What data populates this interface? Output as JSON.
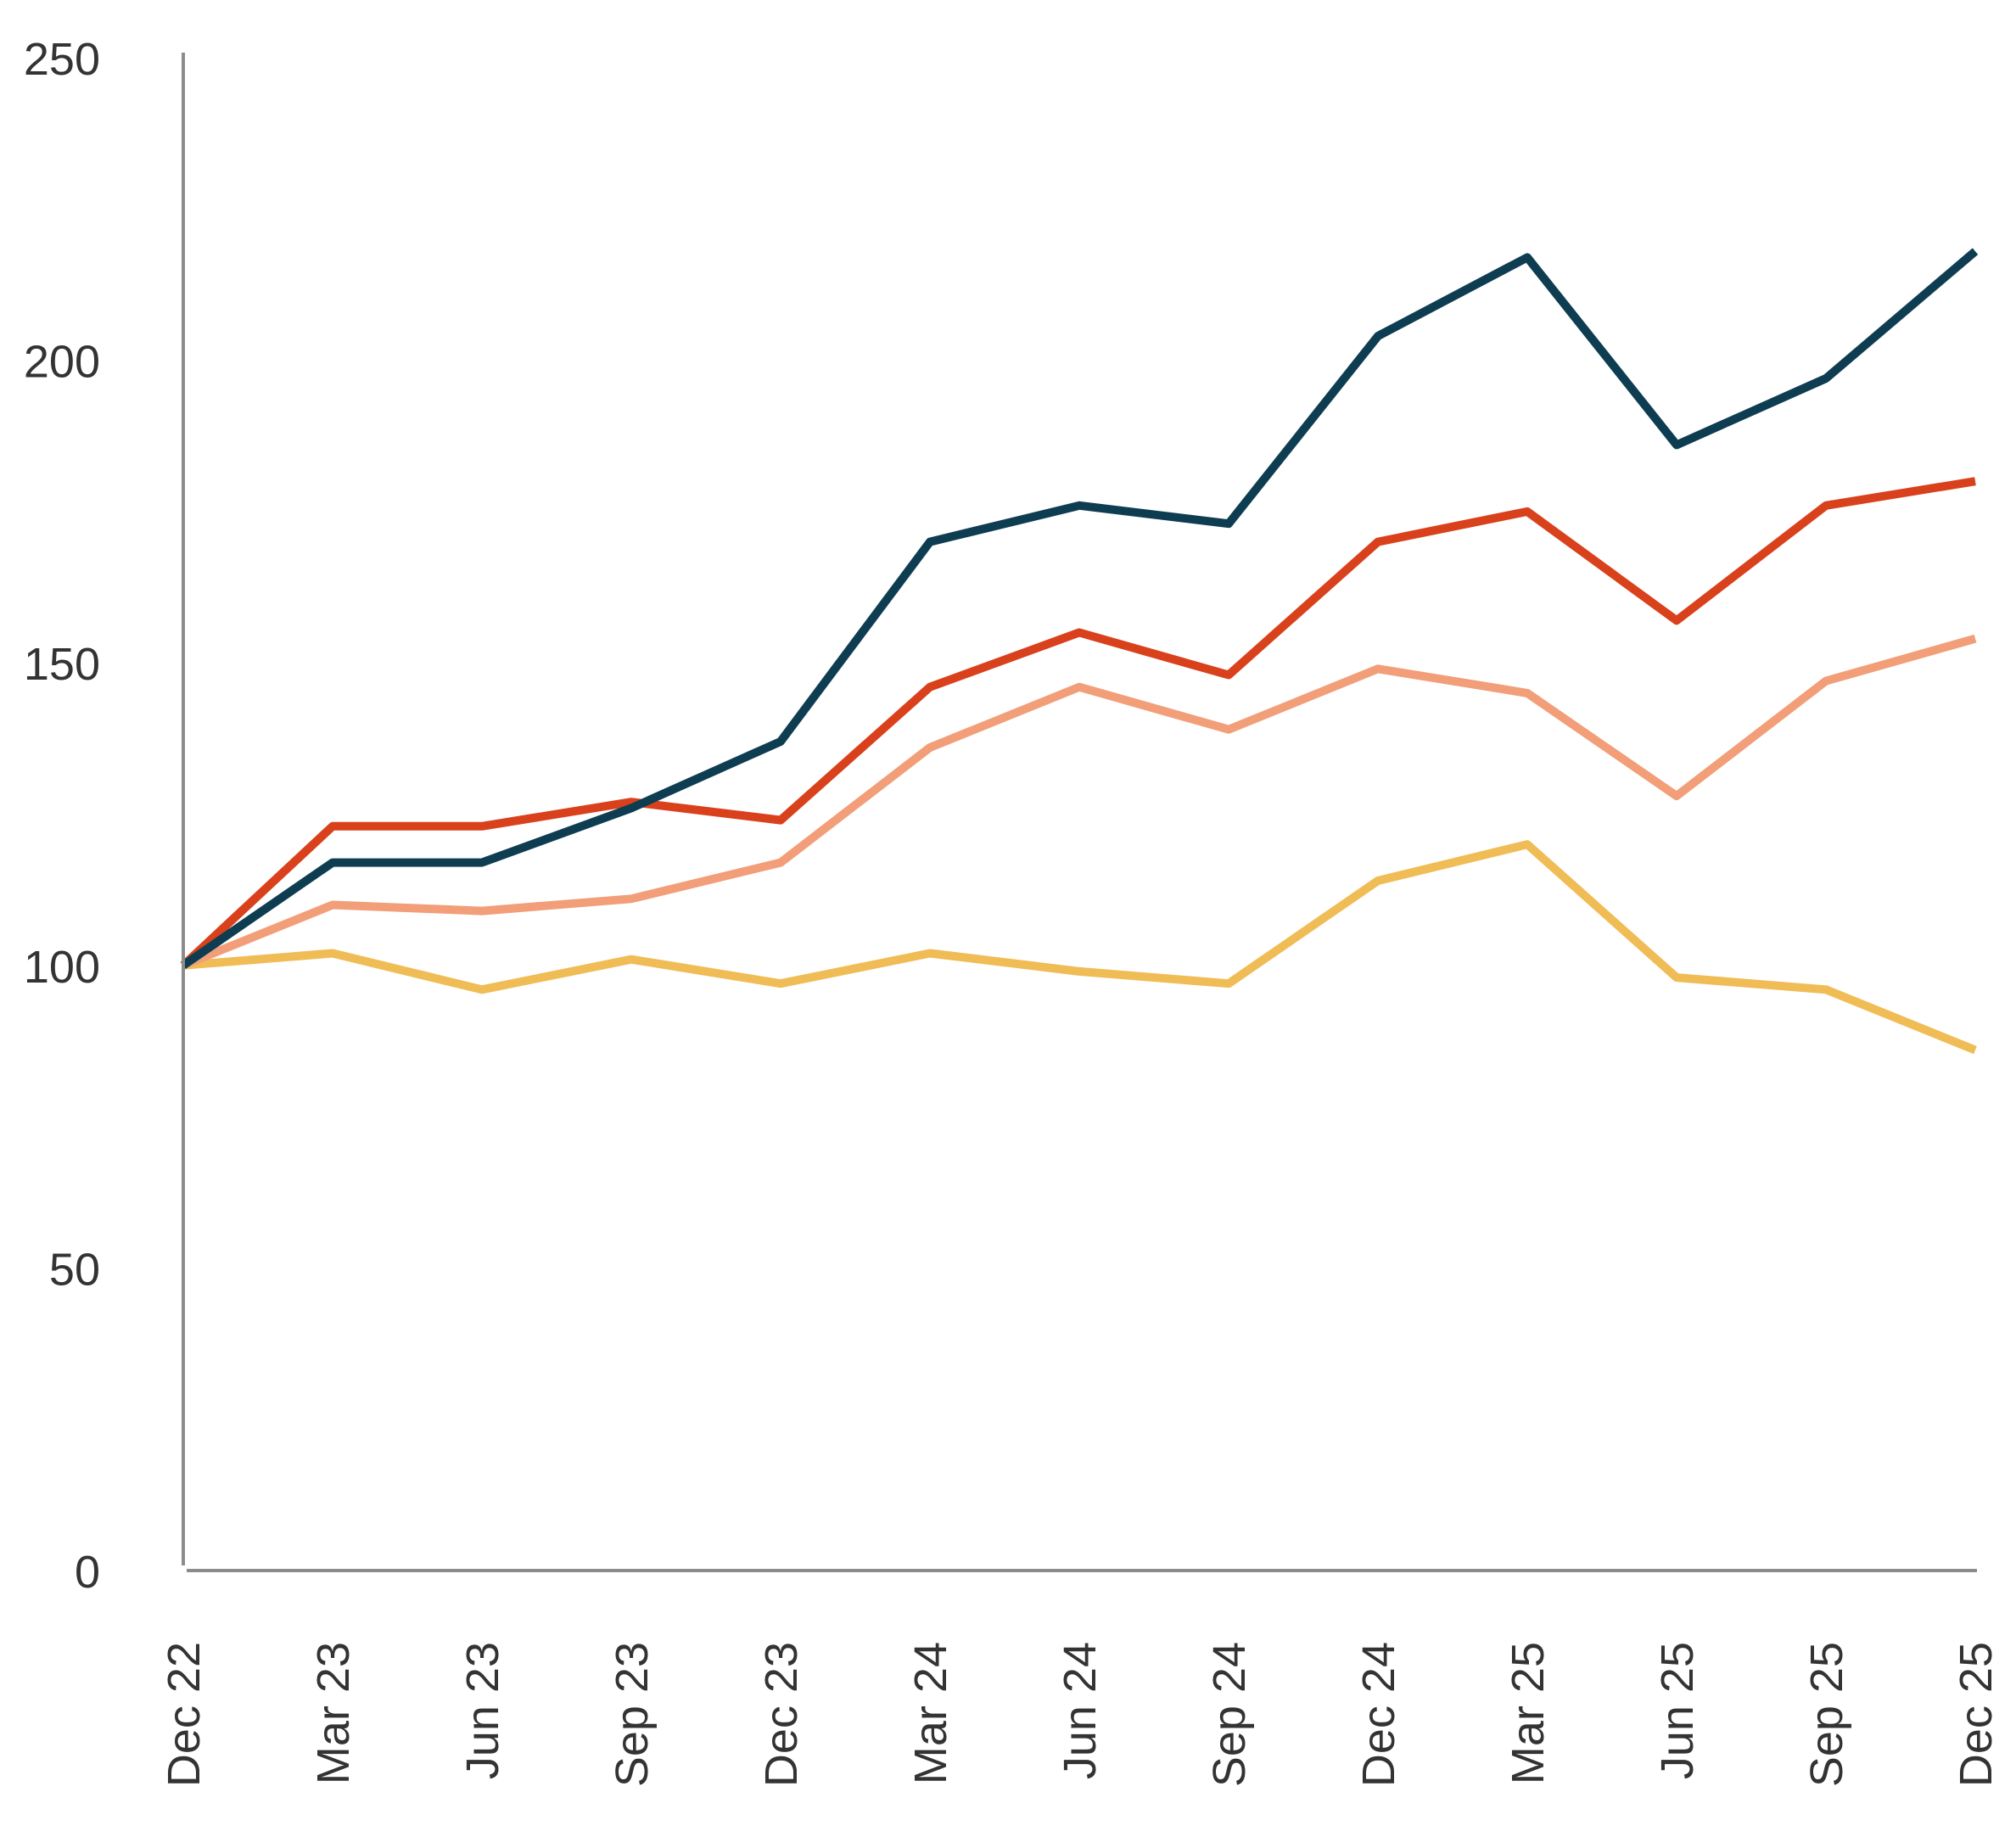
{
  "chart_data": {
    "type": "line",
    "title": "",
    "xlabel": "",
    "ylabel": "",
    "ylim": [
      0,
      250
    ],
    "yticks": [
      0,
      50,
      100,
      150,
      200,
      250
    ],
    "grid": false,
    "legend": "none",
    "categories": [
      "Dec 22",
      "Mar 23",
      "Jun 23",
      "Sep 23",
      "Dec 23",
      "Mar 24",
      "Jun 24",
      "Sep 24",
      "Dec 24",
      "Mar 25",
      "Jun 25",
      "Sep 25",
      "Dec 25"
    ],
    "series": [
      {
        "color": "#0e3d52",
        "values": [
          100,
          117,
          117,
          126,
          137,
          170,
          176,
          173,
          204,
          217,
          186,
          197,
          218
        ]
      },
      {
        "color": "#d9411c",
        "values": [
          100,
          123,
          123,
          127,
          124,
          146,
          155,
          148,
          170,
          175,
          157,
          176,
          180
        ]
      },
      {
        "color": "#f29e79",
        "values": [
          100,
          110,
          109,
          111,
          117,
          136,
          146,
          139,
          149,
          145,
          128,
          147,
          154
        ]
      },
      {
        "color": "#f0bc55",
        "values": [
          100,
          102,
          96,
          101,
          97,
          102,
          99,
          97,
          114,
          120,
          98,
          96,
          86
        ]
      }
    ]
  }
}
